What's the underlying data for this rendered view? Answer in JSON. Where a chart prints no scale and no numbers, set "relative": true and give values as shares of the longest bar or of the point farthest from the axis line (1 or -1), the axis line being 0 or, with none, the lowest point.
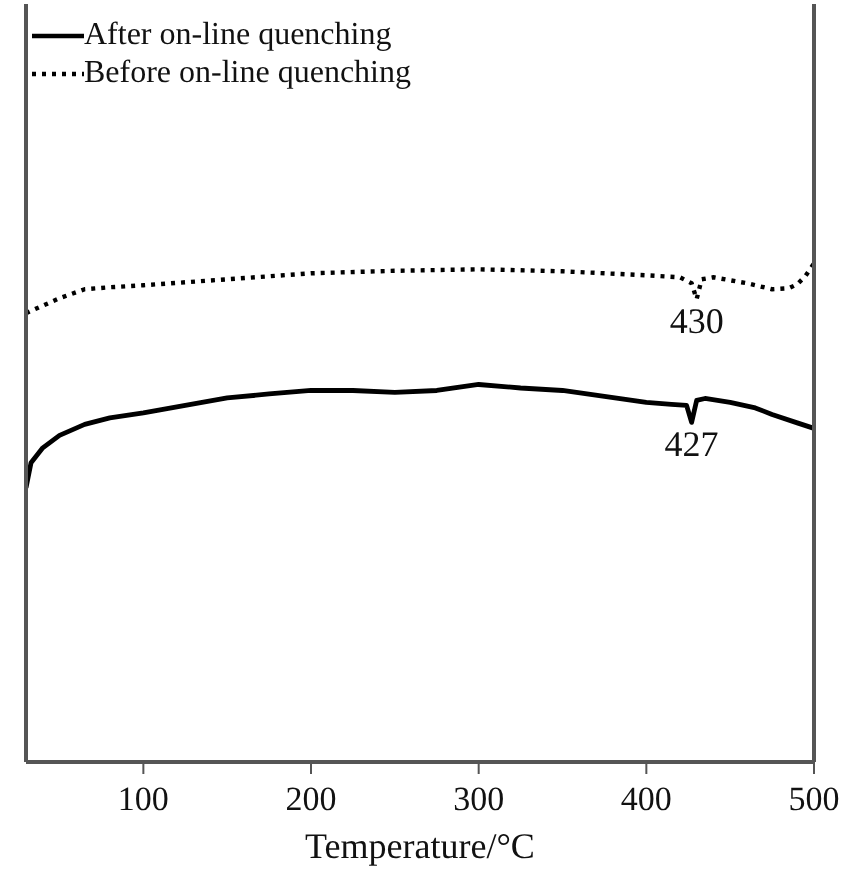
{
  "chart_data": {
    "type": "line",
    "relative": true,
    "xlabel": "Temperature/°C",
    "xlim": [
      30,
      500
    ],
    "xticks": [
      100,
      200,
      300,
      400,
      500
    ],
    "grid": false,
    "legend": "top left",
    "marker": "none",
    "series": [
      {
        "name": "After on-line quenching",
        "color": "#000000",
        "line_style": "solid",
        "x": [
          30,
          33,
          40,
          50,
          65,
          80,
          100,
          125,
          150,
          175,
          200,
          225,
          250,
          275,
          300,
          325,
          350,
          375,
          400,
          415,
          424,
          427,
          430,
          435,
          450,
          465,
          475,
          490,
          500
        ],
        "values": [
          0.55,
          0.6,
          0.63,
          0.655,
          0.677,
          0.69,
          0.7,
          0.715,
          0.73,
          0.738,
          0.745,
          0.745,
          0.741,
          0.745,
          0.757,
          0.75,
          0.745,
          0.733,
          0.721,
          0.717,
          0.715,
          0.681,
          0.725,
          0.729,
          0.721,
          0.71,
          0.697,
          0.68,
          0.669
        ]
      },
      {
        "name": "Before on-line quenching",
        "color": "#000000",
        "line_style": "dotted",
        "x": [
          30,
          40,
          50,
          65,
          80,
          100,
          150,
          200,
          250,
          300,
          350,
          400,
          420,
          427,
          430,
          433,
          440,
          460,
          475,
          485,
          490,
          495,
          500
        ],
        "values": [
          0.9,
          0.915,
          0.93,
          0.948,
          0.952,
          0.956,
          0.968,
          0.98,
          0.985,
          0.988,
          0.984,
          0.976,
          0.972,
          0.96,
          0.928,
          0.968,
          0.972,
          0.96,
          0.948,
          0.95,
          0.958,
          0.975,
          1
        ]
      }
    ],
    "annotations": [
      {
        "text": "430",
        "x": 430,
        "y": 0.928
      },
      {
        "text": "427",
        "x": 427,
        "y": 0.681
      }
    ]
  }
}
